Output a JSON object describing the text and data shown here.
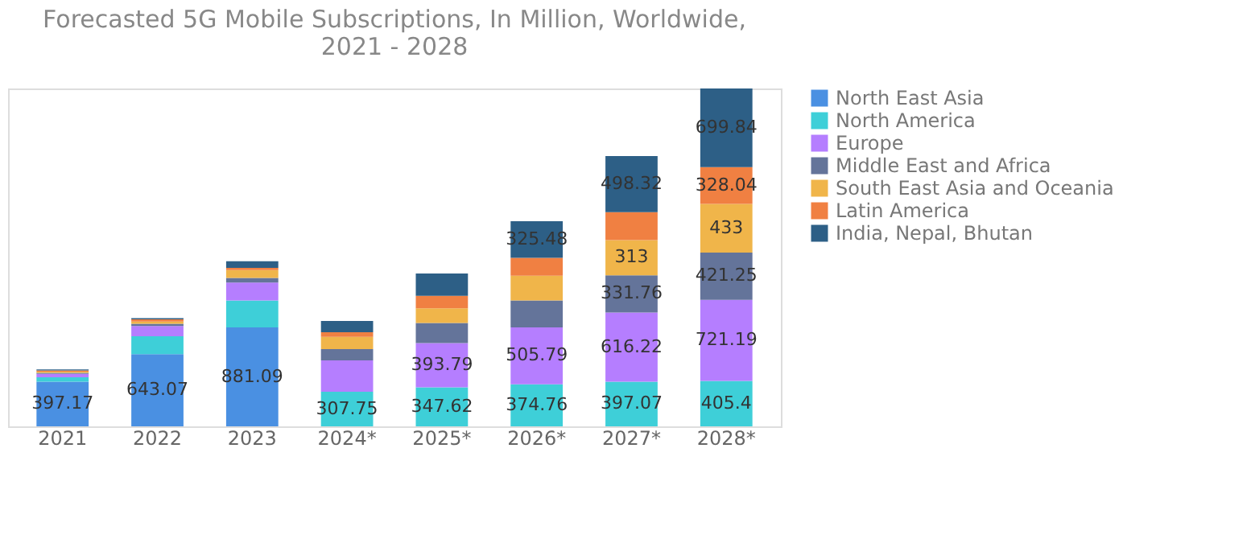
{
  "chart_data": {
    "type": "bar",
    "title": "Forecasted 5G Mobile Subscriptions, In Million, Worldwide, 2021 - 2028",
    "stacked": true,
    "tick_labels": "x",
    "legend": "right",
    "grid": false,
    "categories": [
      "2021",
      "2022",
      "2023",
      "2024*",
      "2025*",
      "2026*",
      "2027*",
      "2028*"
    ],
    "series": [
      {
        "name": "North East Asia",
        "color": "#4a90e2",
        "values": [
          397.17,
          643.07,
          881.09,
          null,
          null,
          null,
          null,
          null
        ],
        "value_labels": [
          "397.17",
          "643.07",
          "881.09",
          null,
          null,
          null,
          null,
          null
        ]
      },
      {
        "name": "North America",
        "color": "#3ecfd8",
        "values": [
          40,
          160,
          240,
          307.75,
          347.62,
          374.76,
          397.07,
          405.4
        ],
        "value_labels": [
          null,
          null,
          null,
          "307.75",
          "347.62",
          "374.76",
          "397.07",
          "405.4"
        ]
      },
      {
        "name": "Europe",
        "color": "#b57eff",
        "values": [
          30,
          90,
          160,
          280,
          393.79,
          505.79,
          616.22,
          721.19
        ],
        "value_labels": [
          null,
          null,
          null,
          null,
          "393.79",
          "505.79",
          "616.22",
          "721.19"
        ]
      },
      {
        "name": "Middle East and Africa",
        "color": "#64749a",
        "values": [
          10,
          20,
          40,
          100,
          180,
          240,
          331.76,
          421.25
        ],
        "value_labels": [
          null,
          null,
          null,
          null,
          null,
          null,
          "331.76",
          "421.25"
        ]
      },
      {
        "name": "South East Asia and Oceania",
        "color": "#f0b54a",
        "values": [
          10,
          20,
          70,
          110,
          130,
          220,
          313,
          433
        ],
        "value_labels": [
          null,
          null,
          null,
          null,
          null,
          null,
          "313",
          "433"
        ]
      },
      {
        "name": "Latin America",
        "color": "#f08042",
        "values": [
          10,
          20,
          20,
          40,
          110,
          160,
          250,
          328.04
        ],
        "value_labels": [
          null,
          null,
          null,
          null,
          null,
          null,
          null,
          "328.04"
        ]
      },
      {
        "name": "India, Nepal, Bhutan",
        "color": "#2d5f86",
        "values": [
          10,
          10,
          60,
          100,
          200,
          325.48,
          498.32,
          699.84
        ],
        "value_labels": [
          null,
          null,
          null,
          null,
          null,
          "325.48",
          "498.32",
          "699.84"
        ]
      }
    ]
  }
}
